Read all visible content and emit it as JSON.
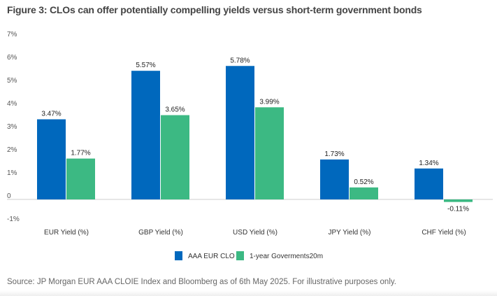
{
  "chart_data": {
    "type": "bar",
    "title": "Figure 3: CLOs can offer potentially compelling yields versus short-term government bonds",
    "categories": [
      "EUR Yield (%)",
      "GBP Yield (%)",
      "USD Yield (%)",
      "JPY Yield (%)",
      "CHF Yield (%)"
    ],
    "series": [
      {
        "name": "AAA EUR CLO",
        "color": "#0068bd",
        "values": [
          3.47,
          5.57,
          5.78,
          1.73,
          1.34
        ],
        "labels": [
          "3.47%",
          "5.57%",
          "5.78%",
          "1.73%",
          "1.34%"
        ]
      },
      {
        "name": "1-year Goverments20m",
        "color": "#3cb983",
        "values": [
          1.77,
          3.65,
          3.99,
          0.52,
          -0.11
        ],
        "labels": [
          "1.77%",
          "3.65%",
          "3.99%",
          "0.52%",
          "-0.11%"
        ]
      }
    ],
    "yticks": [
      7,
      6,
      5,
      4,
      3,
      2,
      1,
      0,
      -1
    ],
    "ytick_labels": [
      "7%",
      "6%",
      "5%",
      "4%",
      "3%",
      "2%",
      "1%",
      "0",
      "-1%"
    ],
    "ylim": [
      -1,
      7
    ],
    "xlabel": "",
    "ylabel": "",
    "grid": false,
    "legend_position": "bottom-center",
    "source": "Source: JP Morgan EUR AAA CLOIE Index and Bloomberg as of 6th May 2025. For illustrative purposes only."
  }
}
